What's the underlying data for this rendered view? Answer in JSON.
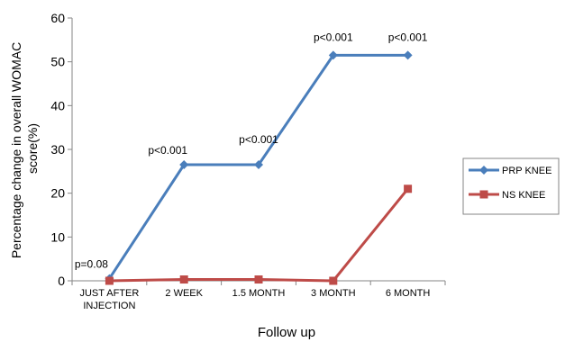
{
  "chart_data": {
    "type": "line",
    "categories": [
      "JUST AFTER\nINJECTION",
      "2 WEEK",
      "1.5 MONTH",
      "3 MONTH",
      "6 MONTH"
    ],
    "series": [
      {
        "name": "PRP KNEE",
        "values": [
          0.5,
          26.5,
          26.5,
          51.5,
          51.5
        ],
        "color": "#4a7ebb",
        "marker": "diamond"
      },
      {
        "name": "NS KNEE",
        "values": [
          0,
          0.3,
          0.3,
          0,
          21
        ],
        "color": "#be4b48",
        "marker": "square"
      }
    ],
    "annotations": [
      {
        "text": "p=0.08",
        "category_index": 0
      },
      {
        "text": "p<0.001",
        "category_index": 1
      },
      {
        "text": "p<0.001",
        "category_index": 2
      },
      {
        "text": "p<0.001",
        "category_index": 3
      },
      {
        "text": "p<0.001",
        "category_index": 4
      }
    ],
    "ylim": [
      0,
      60
    ],
    "yticks": [
      0,
      10,
      20,
      30,
      40,
      50,
      60
    ],
    "xlabel": "Follow up",
    "ylabel_lines": [
      "Percentage change in overall WOMAC",
      "score(%)"
    ],
    "grid": false,
    "legend_position": "right"
  }
}
